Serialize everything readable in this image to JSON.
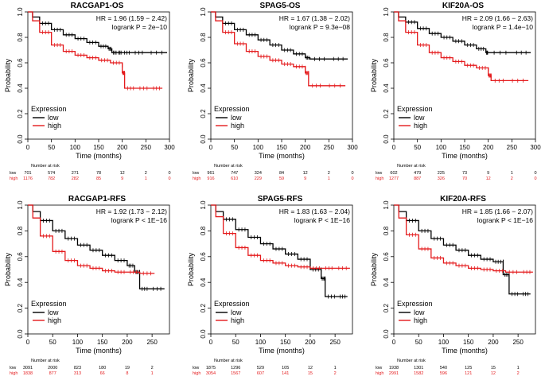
{
  "chart_data": [
    {
      "type": "line",
      "title": "RACGAP1-OS",
      "xlabel": "Time (months)",
      "ylabel": "Probability",
      "xlim": [
        0,
        300
      ],
      "ylim": [
        0,
        1
      ],
      "xticks": [
        "0",
        "50",
        "100",
        "150",
        "200",
        "250",
        "300"
      ],
      "yticks": [
        "0.0",
        "0.2",
        "0.4",
        "0.6",
        "0.8",
        "1.0"
      ],
      "hr_text": "HR = 1.96 (1.59 − 2.42)",
      "p_text": "logrank P = 2e−10",
      "legend_title": "Expression",
      "legend": [
        "low",
        "high"
      ],
      "colors": {
        "low": "#000000",
        "high": "#e41a1c"
      },
      "series": [
        {
          "name": "low",
          "x": [
            0,
            10,
            25,
            50,
            75,
            100,
            125,
            150,
            170,
            178,
            190,
            200,
            220,
            250,
            295
          ],
          "y": [
            1.0,
            0.96,
            0.91,
            0.86,
            0.82,
            0.79,
            0.76,
            0.73,
            0.71,
            0.68,
            0.68,
            0.68,
            0.68,
            0.68,
            0.68
          ]
        },
        {
          "name": "high",
          "x": [
            0,
            10,
            25,
            50,
            75,
            100,
            125,
            150,
            175,
            200,
            200,
            205,
            205,
            230,
            260,
            285
          ],
          "y": [
            1.0,
            0.93,
            0.84,
            0.74,
            0.69,
            0.66,
            0.64,
            0.62,
            0.6,
            0.58,
            0.52,
            0.52,
            0.4,
            0.4,
            0.4,
            0.4
          ]
        }
      ],
      "risk_title": "Number at risk",
      "risk_labels": [
        "low",
        "high"
      ],
      "risk_low": [
        "701",
        "574",
        "271",
        "78",
        "12",
        "2",
        "0"
      ],
      "risk_high": [
        "1176",
        "782",
        "282",
        "85",
        "9",
        "1",
        "0"
      ]
    },
    {
      "type": "line",
      "title": "SPAG5-OS",
      "xlabel": "Time (months)",
      "ylabel": "Probability",
      "xlim": [
        0,
        300
      ],
      "ylim": [
        0,
        1
      ],
      "xticks": [
        "0",
        "50",
        "100",
        "150",
        "200",
        "250",
        "300"
      ],
      "yticks": [
        "0.0",
        "0.2",
        "0.4",
        "0.6",
        "0.8",
        "1.0"
      ],
      "hr_text": "HR = 1.67 (1.38 − 2.02)",
      "p_text": "logrank P = 9.3e−08",
      "legend_title": "Expression",
      "legend": [
        "low",
        "high"
      ],
      "colors": {
        "low": "#000000",
        "high": "#e41a1c"
      },
      "series": [
        {
          "name": "low",
          "x": [
            0,
            10,
            25,
            50,
            75,
            100,
            125,
            150,
            175,
            200,
            210,
            250,
            290
          ],
          "y": [
            1.0,
            0.96,
            0.91,
            0.86,
            0.82,
            0.78,
            0.74,
            0.7,
            0.67,
            0.64,
            0.63,
            0.63,
            0.63
          ]
        },
        {
          "name": "high",
          "x": [
            0,
            10,
            25,
            50,
            75,
            100,
            125,
            150,
            175,
            200,
            200,
            207,
            207,
            240,
            285
          ],
          "y": [
            1.0,
            0.93,
            0.84,
            0.75,
            0.69,
            0.65,
            0.62,
            0.59,
            0.57,
            0.56,
            0.52,
            0.52,
            0.42,
            0.42,
            0.42
          ]
        }
      ],
      "risk_title": "Number at risk",
      "risk_labels": [
        "low",
        "high"
      ],
      "risk_low": [
        "961",
        "747",
        "324",
        "84",
        "12",
        "2",
        "0"
      ],
      "risk_high": [
        "916",
        "610",
        "229",
        "59",
        "9",
        "1",
        "0"
      ]
    },
    {
      "type": "line",
      "title": "KIF20A-OS",
      "xlabel": "Time (months)",
      "ylabel": "Probability",
      "xlim": [
        0,
        300
      ],
      "ylim": [
        0,
        1
      ],
      "xticks": [
        "0",
        "50",
        "100",
        "150",
        "200",
        "250",
        "300"
      ],
      "yticks": [
        "0.0",
        "0.2",
        "0.4",
        "0.6",
        "0.8",
        "1.0"
      ],
      "hr_text": "HR = 2.09 (1.66 − 2.63)",
      "p_text": "logrank P = 1.4e−10",
      "legend_title": "Expression",
      "legend": [
        "low",
        "high"
      ],
      "colors": {
        "low": "#000000",
        "high": "#e41a1c"
      },
      "series": [
        {
          "name": "low",
          "x": [
            0,
            10,
            25,
            50,
            75,
            100,
            125,
            150,
            175,
            195,
            200,
            250,
            290
          ],
          "y": [
            1.0,
            0.96,
            0.92,
            0.87,
            0.83,
            0.8,
            0.77,
            0.74,
            0.71,
            0.68,
            0.68,
            0.68,
            0.68
          ]
        },
        {
          "name": "high",
          "x": [
            0,
            10,
            25,
            50,
            75,
            100,
            125,
            150,
            175,
            200,
            200,
            206,
            206,
            240,
            285
          ],
          "y": [
            1.0,
            0.93,
            0.84,
            0.74,
            0.68,
            0.64,
            0.61,
            0.58,
            0.56,
            0.55,
            0.5,
            0.5,
            0.46,
            0.46,
            0.46
          ]
        }
      ],
      "risk_title": "Number at risk",
      "risk_labels": [
        "low",
        "high"
      ],
      "risk_low": [
        "602",
        "479",
        "225",
        "73",
        "9",
        "1",
        "0"
      ],
      "risk_high": [
        "1277",
        "887",
        "326",
        "70",
        "12",
        "2",
        "0"
      ]
    },
    {
      "type": "line",
      "title": "RACGAP1-RFS",
      "xlabel": "Time (months)",
      "ylabel": "Probability",
      "xlim": [
        0,
        285
      ],
      "ylim": [
        0,
        1
      ],
      "xticks": [
        "0",
        "50",
        "100",
        "150",
        "200",
        "250"
      ],
      "yticks": [
        "0.0",
        "0.2",
        "0.4",
        "0.6",
        "0.8",
        "1.0"
      ],
      "hr_text": "HR = 1.92 (1.73 − 2.12)",
      "p_text": "logrank P < 1E−16",
      "legend_title": "Expression",
      "legend": [
        "low",
        "high"
      ],
      "colors": {
        "low": "#000000",
        "high": "#e41a1c"
      },
      "series": [
        {
          "name": "low",
          "x": [
            0,
            10,
            25,
            50,
            75,
            100,
            125,
            150,
            175,
            200,
            215,
            225,
            225,
            245,
            275
          ],
          "y": [
            1.0,
            0.95,
            0.88,
            0.8,
            0.74,
            0.69,
            0.65,
            0.61,
            0.57,
            0.53,
            0.48,
            0.48,
            0.35,
            0.35,
            0.35
          ]
        },
        {
          "name": "high",
          "x": [
            0,
            10,
            25,
            50,
            75,
            100,
            125,
            150,
            175,
            200,
            225,
            255
          ],
          "y": [
            1.0,
            0.9,
            0.76,
            0.64,
            0.57,
            0.53,
            0.51,
            0.49,
            0.48,
            0.48,
            0.47,
            0.47
          ]
        }
      ],
      "risk_title": "Number at risk",
      "risk_labels": [
        "low",
        "high"
      ],
      "risk_low": [
        "3091",
        "2000",
        "823",
        "180",
        "19",
        "2"
      ],
      "risk_high": [
        "1838",
        "877",
        "313",
        "66",
        "8",
        "1"
      ]
    },
    {
      "type": "line",
      "title": "SPAG5-RFS",
      "xlabel": "Time (months)",
      "ylabel": "Probability",
      "xlim": [
        0,
        285
      ],
      "ylim": [
        0,
        1
      ],
      "xticks": [
        "0",
        "50",
        "100",
        "150",
        "200",
        "250"
      ],
      "yticks": [
        "0.0",
        "0.2",
        "0.4",
        "0.6",
        "0.8",
        "1.0"
      ],
      "hr_text": "HR = 1.83 (1.63 − 2.04)",
      "p_text": "logrank P < 1E−16",
      "legend_title": "Expression",
      "legend": [
        "low",
        "high"
      ],
      "colors": {
        "low": "#000000",
        "high": "#e41a1c"
      },
      "series": [
        {
          "name": "low",
          "x": [
            0,
            10,
            25,
            50,
            75,
            100,
            125,
            150,
            175,
            200,
            200,
            222,
            222,
            230,
            230,
            255,
            275
          ],
          "y": [
            1.0,
            0.95,
            0.89,
            0.81,
            0.75,
            0.7,
            0.66,
            0.62,
            0.58,
            0.55,
            0.5,
            0.5,
            0.43,
            0.43,
            0.29,
            0.29,
            0.29
          ]
        },
        {
          "name": "high",
          "x": [
            0,
            10,
            25,
            50,
            75,
            100,
            125,
            150,
            175,
            200,
            225,
            250,
            280
          ],
          "y": [
            1.0,
            0.91,
            0.78,
            0.67,
            0.61,
            0.57,
            0.55,
            0.53,
            0.52,
            0.51,
            0.51,
            0.51,
            0.51
          ]
        }
      ],
      "risk_title": "Number at risk",
      "risk_labels": [
        "low",
        "high"
      ],
      "risk_low": [
        "1875",
        "1296",
        "529",
        "105",
        "12",
        "1"
      ],
      "risk_high": [
        "3054",
        "1567",
        "607",
        "141",
        "15",
        "2"
      ]
    },
    {
      "type": "line",
      "title": "KIF20A-RFS",
      "xlabel": "Time (months)",
      "ylabel": "Probability",
      "xlim": [
        0,
        285
      ],
      "ylim": [
        0,
        1
      ],
      "xticks": [
        "0",
        "50",
        "100",
        "150",
        "200",
        "250"
      ],
      "yticks": [
        "0.0",
        "0.2",
        "0.4",
        "0.6",
        "0.8",
        "1.0"
      ],
      "hr_text": "HR = 1.85 (1.66 − 2.07)",
      "p_text": "logrank P < 1E−16",
      "legend_title": "Expression",
      "legend": [
        "low",
        "high"
      ],
      "colors": {
        "low": "#000000",
        "high": "#e41a1c"
      },
      "series": [
        {
          "name": "low",
          "x": [
            0,
            10,
            25,
            50,
            75,
            100,
            125,
            150,
            175,
            200,
            220,
            220,
            232,
            232,
            255,
            275
          ],
          "y": [
            1.0,
            0.95,
            0.88,
            0.8,
            0.74,
            0.69,
            0.65,
            0.61,
            0.58,
            0.56,
            0.56,
            0.46,
            0.46,
            0.31,
            0.31,
            0.31
          ]
        },
        {
          "name": "high",
          "x": [
            0,
            10,
            25,
            50,
            75,
            100,
            125,
            150,
            175,
            200,
            225,
            255,
            280
          ],
          "y": [
            1.0,
            0.9,
            0.77,
            0.66,
            0.59,
            0.55,
            0.53,
            0.51,
            0.5,
            0.49,
            0.48,
            0.48,
            0.48
          ]
        }
      ],
      "risk_title": "Number at risk",
      "risk_labels": [
        "low",
        "high"
      ],
      "risk_low": [
        "1938",
        "1301",
        "540",
        "125",
        "15",
        "1"
      ],
      "risk_high": [
        "2991",
        "1582",
        "596",
        "121",
        "12",
        "2"
      ]
    }
  ]
}
